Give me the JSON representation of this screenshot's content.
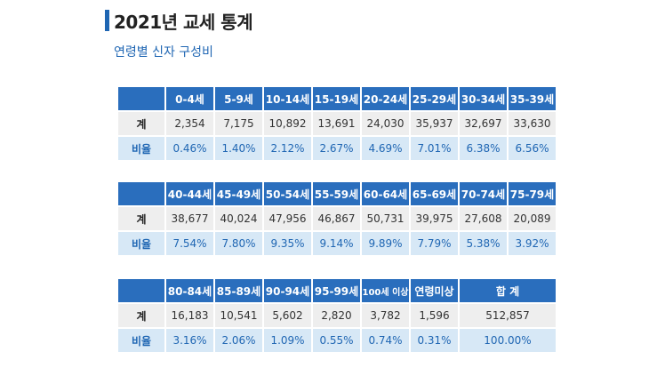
{
  "title": "2021년 교세 통계",
  "subtitle": "연령별 신자 구성비",
  "row_labels": {
    "count": "계",
    "rate": "비율"
  },
  "tables": [
    {
      "headers": [
        "0-4세",
        "5-9세",
        "10-14세",
        "15-19세",
        "20-24세",
        "25-29세",
        "30-34세",
        "35-39세"
      ],
      "counts": [
        "2,354",
        "7,175",
        "10,892",
        "13,691",
        "24,030",
        "35,937",
        "32,697",
        "33,630"
      ],
      "rates": [
        "0.46%",
        "1.40%",
        "2.12%",
        "2.67%",
        "4.69%",
        "7.01%",
        "6.38%",
        "6.56%"
      ]
    },
    {
      "headers": [
        "40-44세",
        "45-49세",
        "50-54세",
        "55-59세",
        "60-64세",
        "65-69세",
        "70-74세",
        "75-79세"
      ],
      "counts": [
        "38,677",
        "40,024",
        "47,956",
        "46,867",
        "50,731",
        "39,975",
        "27,608",
        "20,089"
      ],
      "rates": [
        "7.54%",
        "7.80%",
        "9.35%",
        "9.14%",
        "9.89%",
        "7.79%",
        "5.38%",
        "3.92%"
      ]
    },
    {
      "headers": [
        "80-84세",
        "85-89세",
        "90-94세",
        "95-99세",
        "100세 이상",
        "연령미상",
        "합 계"
      ],
      "counts": [
        "16,183",
        "10,541",
        "5,602",
        "2,820",
        "3,782",
        "1,596",
        "512,857"
      ],
      "rates": [
        "3.16%",
        "2.06%",
        "1.09%",
        "0.55%",
        "0.74%",
        "0.31%",
        "100.00%"
      ]
    }
  ]
}
